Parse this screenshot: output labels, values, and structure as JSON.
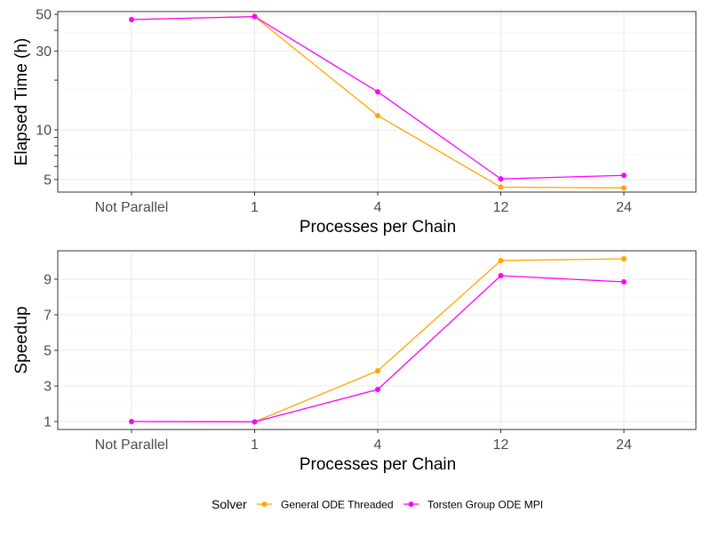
{
  "chart_data": [
    {
      "type": "line",
      "id": "elapsed",
      "ylabel": "Elapsed Time (h)",
      "xlabel": "Processes per Chain",
      "categories": [
        "Not Parallel",
        "1",
        "4",
        "12",
        "24"
      ],
      "yscale": "log",
      "ylim": [
        4.2,
        52
      ],
      "yticks": [
        5,
        10,
        30,
        50
      ],
      "yticks_unlabeled": [
        20,
        40
      ],
      "series": [
        {
          "name": "General ODE Threaded",
          "color": "#FFA500",
          "values": [
            46.5,
            48.5,
            12.2,
            4.5,
            4.45
          ]
        },
        {
          "name": "Torsten Group ODE MPI",
          "color": "#FF00FF",
          "values": [
            46.5,
            48.5,
            17.0,
            5.05,
            5.3
          ]
        }
      ]
    },
    {
      "type": "line",
      "id": "speedup",
      "ylabel": "Speedup",
      "xlabel": "Processes per Chain",
      "categories": [
        "Not Parallel",
        "1",
        "4",
        "12",
        "24"
      ],
      "yscale": "linear",
      "ylim": [
        0.55,
        10.6
      ],
      "yticks": [
        1,
        3,
        5,
        7,
        9
      ],
      "series": [
        {
          "name": "General ODE Threaded",
          "color": "#FFA500",
          "values": [
            1.0,
            0.98,
            3.85,
            10.05,
            10.15
          ]
        },
        {
          "name": "Torsten Group ODE MPI",
          "color": "#FF00FF",
          "values": [
            1.0,
            0.98,
            2.8,
            9.2,
            8.85
          ]
        }
      ]
    }
  ],
  "legend": {
    "title": "Solver",
    "items": [
      {
        "label": "General ODE Threaded",
        "color": "#FFA500"
      },
      {
        "label": "Torsten Group ODE MPI",
        "color": "#FF00FF"
      }
    ]
  }
}
